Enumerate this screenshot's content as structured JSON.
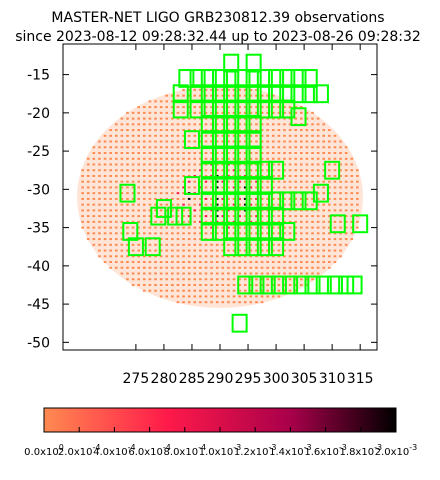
{
  "chart_data": {
    "type": "heatmap",
    "title_line1": "MASTER-NET LIGO GRB230812.39 observations",
    "title_line2": "since 2023-08-12 09:28:32.44 up to 2023-08-26 09:28:32",
    "xlabel": "",
    "ylabel": "",
    "xlim": [
      262,
      318
    ],
    "ylim": [
      -51,
      -11
    ],
    "x_ticks": [
      275,
      280,
      285,
      290,
      295,
      300,
      305,
      310,
      315
    ],
    "y_ticks": [
      -15,
      -20,
      -25,
      -30,
      -35,
      -40,
      -45,
      -50
    ],
    "grid": false,
    "colorbar": {
      "orientation": "horizontal",
      "min": 0.0,
      "max": 0.002,
      "tick_labels": [
        "0.0x10^0",
        "2.0x10^-4",
        "4.0x10^-4",
        "6.0x10^-4",
        "8.0x10^-4",
        "1.0x10^-3",
        "1.2x10^-3",
        "1.4x10^-3",
        "1.6x10^-3",
        "1.8x10^-3",
        "2.0x10^-3"
      ],
      "colors": [
        "#ff8a50",
        "#ff1a4a",
        "#a8004a",
        "#000000"
      ]
    },
    "probability_region": {
      "shape": "ellipse",
      "center": [
        290,
        -31
      ],
      "radius_x": 25.5,
      "radius_y": 14.5
    },
    "fields_color": "#00ff00",
    "fields": [
      [
        273.5,
        -30.5
      ],
      [
        274,
        -35.5
      ],
      [
        275,
        -37.5
      ],
      [
        278,
        -37.5
      ],
      [
        279,
        -33.5
      ],
      [
        280,
        -32.5
      ],
      [
        282,
        -33.5
      ],
      [
        283.5,
        -33.5
      ],
      [
        285,
        -29.5
      ],
      [
        285,
        -23.5
      ],
      [
        286,
        -17.5
      ],
      [
        286,
        -19.5
      ],
      [
        286,
        -15.5
      ],
      [
        283,
        -19.5
      ],
      [
        283,
        -17.5
      ],
      [
        284,
        -15.5
      ],
      [
        288,
        -15.5
      ],
      [
        288,
        -17.5
      ],
      [
        288,
        -19.5
      ],
      [
        288,
        -21.5
      ],
      [
        288,
        -23.5
      ],
      [
        288,
        -25.5
      ],
      [
        288,
        -27.5
      ],
      [
        288,
        -29.5
      ],
      [
        288,
        -31.5
      ],
      [
        288,
        -33.5
      ],
      [
        288,
        -35.5
      ],
      [
        290,
        -15.5
      ],
      [
        290,
        -17.5
      ],
      [
        290,
        -19.5
      ],
      [
        290,
        -21.5
      ],
      [
        290,
        -23.5
      ],
      [
        290,
        -25.5
      ],
      [
        290,
        -27.5
      ],
      [
        290,
        -29.5
      ],
      [
        290,
        -31.5
      ],
      [
        290,
        -33.5
      ],
      [
        290,
        -35.5
      ],
      [
        292,
        -13.5
      ],
      [
        292,
        -15.5
      ],
      [
        292,
        -17.5
      ],
      [
        292,
        -19.5
      ],
      [
        292,
        -21.5
      ],
      [
        292,
        -23.5
      ],
      [
        292,
        -25.5
      ],
      [
        292,
        -27.5
      ],
      [
        292,
        -29.5
      ],
      [
        292,
        -31.5
      ],
      [
        292,
        -33.5
      ],
      [
        292,
        -35.5
      ],
      [
        292,
        -37.5
      ],
      [
        294,
        -15.5
      ],
      [
        294,
        -17.5
      ],
      [
        294,
        -19.5
      ],
      [
        294,
        -21.5
      ],
      [
        294,
        -23.5
      ],
      [
        294,
        -25.5
      ],
      [
        294,
        -27.5
      ],
      [
        294,
        -29.5
      ],
      [
        294,
        -31.5
      ],
      [
        294,
        -33.5
      ],
      [
        294,
        -35.5
      ],
      [
        294,
        -37.5
      ],
      [
        296,
        -13.5
      ],
      [
        296,
        -15.5
      ],
      [
        296,
        -17.5
      ],
      [
        296,
        -19.5
      ],
      [
        296,
        -21.5
      ],
      [
        296,
        -23.5
      ],
      [
        296,
        -25.5
      ],
      [
        296,
        -27.5
      ],
      [
        296,
        -29.5
      ],
      [
        296,
        -31.5
      ],
      [
        296,
        -33.5
      ],
      [
        296,
        -35.5
      ],
      [
        296,
        -37.5
      ],
      [
        298,
        -15.5
      ],
      [
        298,
        -17.5
      ],
      [
        298,
        -19.5
      ],
      [
        298,
        -27.5
      ],
      [
        298,
        -29.5
      ],
      [
        298,
        -31.5
      ],
      [
        298,
        -33.5
      ],
      [
        298,
        -35.5
      ],
      [
        298,
        -37.5
      ],
      [
        300,
        -15.5
      ],
      [
        300,
        -17.5
      ],
      [
        300,
        -19.5
      ],
      [
        300,
        -27.5
      ],
      [
        300,
        -31.5
      ],
      [
        300,
        -33.5
      ],
      [
        300,
        -35.5
      ],
      [
        300,
        -37.5
      ],
      [
        302,
        -15.5
      ],
      [
        302,
        -17.5
      ],
      [
        302,
        -19.5
      ],
      [
        302,
        -31.5
      ],
      [
        302,
        -35.5
      ],
      [
        304,
        -15.5
      ],
      [
        304,
        -17.5
      ],
      [
        304,
        -20.5
      ],
      [
        304,
        -31.5
      ],
      [
        306,
        -15.5
      ],
      [
        306,
        -17.5
      ],
      [
        306,
        -31.5
      ],
      [
        308,
        -17.5
      ],
      [
        308,
        -30.5
      ],
      [
        310,
        -27.5
      ],
      [
        311,
        -34.5
      ],
      [
        315,
        -34.5
      ],
      [
        293.5,
        -47.5
      ],
      [
        294.5,
        -42.5
      ],
      [
        296.5,
        -42.5
      ],
      [
        298.5,
        -42.5
      ],
      [
        300.5,
        -42.5
      ],
      [
        302.5,
        -42.5
      ],
      [
        304.5,
        -42.5
      ],
      [
        306.5,
        -42.5
      ],
      [
        308.5,
        -42.5
      ],
      [
        310.5,
        -42.5
      ],
      [
        312.5,
        -42.5
      ],
      [
        314,
        -42.5
      ]
    ]
  }
}
